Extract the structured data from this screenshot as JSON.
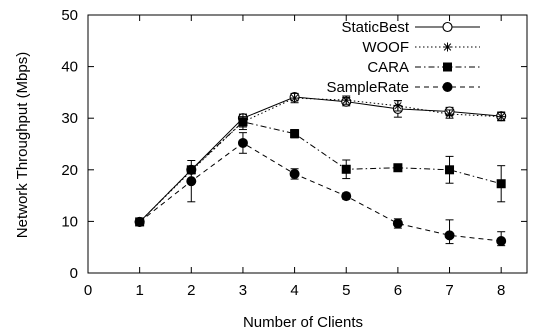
{
  "chart_data": {
    "type": "line",
    "title": "",
    "xlabel": "Number of Clients",
    "ylabel": "Network Throughput (Mbps)",
    "xlim": [
      0,
      8.5
    ],
    "ylim": [
      0,
      50
    ],
    "xticks": [
      0,
      1,
      2,
      3,
      4,
      5,
      6,
      7,
      8
    ],
    "yticks": [
      0,
      10,
      20,
      30,
      40,
      50
    ],
    "grid": false,
    "legend_position": "top-right",
    "x": [
      1,
      2,
      3,
      4,
      5,
      6,
      7,
      8
    ],
    "series": [
      {
        "name": "StaticBest",
        "marker": "open-circle",
        "line_style": "solid",
        "color": "#000000",
        "values": [
          9.9,
          20.0,
          30.0,
          34.1,
          33.2,
          31.8,
          31.3,
          30.4
        ],
        "err_low": [
          0.3,
          0.5,
          0.6,
          0.7,
          0.8,
          1.6,
          0.8,
          0.8
        ],
        "err_high": [
          0.3,
          0.5,
          0.6,
          0.7,
          0.8,
          1.6,
          0.8,
          0.8
        ]
      },
      {
        "name": "WOOF",
        "marker": "star",
        "line_style": "dotted",
        "color": "#000000",
        "values": [
          9.9,
          19.8,
          29.3,
          33.9,
          33.5,
          32.4,
          30.8,
          30.3
        ],
        "err_low": [
          0.3,
          0.5,
          1.5,
          0.9,
          0.8,
          1.0,
          0.8,
          0.8
        ],
        "err_high": [
          0.3,
          0.5,
          1.5,
          0.9,
          0.8,
          1.0,
          0.8,
          0.8
        ]
      },
      {
        "name": "CARA",
        "marker": "filled-square",
        "line_style": "dash-dot",
        "color": "#000000",
        "values": [
          9.9,
          20.0,
          29.3,
          27.0,
          20.1,
          20.4,
          20.0,
          17.3
        ],
        "err_low": [
          0.3,
          0.5,
          1.0,
          0.8,
          1.8,
          0.6,
          2.6,
          3.5
        ],
        "err_high": [
          0.3,
          0.5,
          1.0,
          0.8,
          1.8,
          0.6,
          2.6,
          3.5
        ]
      },
      {
        "name": "SampleRate",
        "marker": "filled-circle",
        "line_style": "dashed",
        "color": "#000000",
        "values": [
          9.9,
          17.8,
          25.2,
          19.2,
          14.9,
          9.6,
          7.3,
          6.2
        ],
        "err_low": [
          0.3,
          4.0,
          2.0,
          1.0,
          0.6,
          0.9,
          1.6,
          0.9
        ],
        "err_high": [
          0.3,
          4.0,
          2.0,
          1.0,
          0.6,
          0.9,
          3.0,
          1.8
        ]
      }
    ]
  }
}
